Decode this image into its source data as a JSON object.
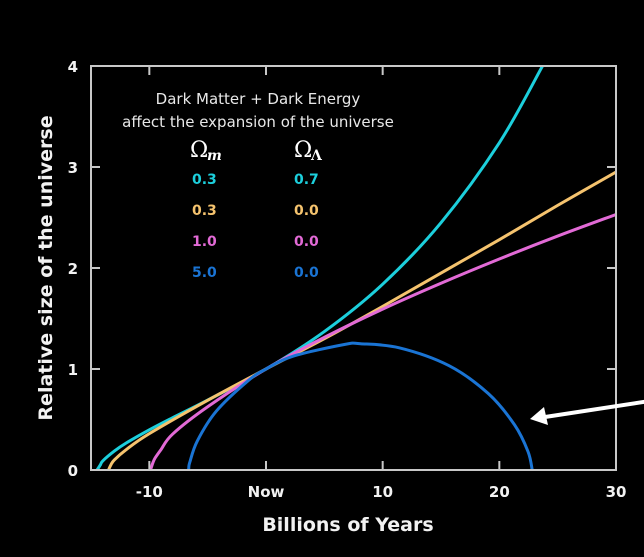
{
  "chart_data": {
    "type": "line",
    "xlabel": "Billions of Years",
    "ylabel": "Relative size of the universe",
    "xlim": [
      -15,
      30
    ],
    "ylim": [
      0,
      4
    ],
    "x_ticks": [
      {
        "value": -10,
        "label": "-10"
      },
      {
        "value": 0,
        "label": "Now"
      },
      {
        "value": 10,
        "label": "10"
      },
      {
        "value": 20,
        "label": "20"
      },
      {
        "value": 30,
        "label": "30"
      }
    ],
    "y_ticks": [
      {
        "value": 0,
        "label": "0"
      },
      {
        "value": 1,
        "label": "1"
      },
      {
        "value": 2,
        "label": "2"
      },
      {
        "value": 3,
        "label": "3"
      },
      {
        "value": 4,
        "label": "4"
      }
    ],
    "grid": false,
    "annotation": {
      "line1": "Dark Matter + Dark Energy",
      "line2": "affect the expansion of the universe"
    },
    "legend": {
      "placement": "top-left",
      "col1_symbol": "Ω",
      "col1_sub": "m",
      "col2_symbol": "Ω",
      "col2_sub": "Λ"
    },
    "series": [
      {
        "omega_m": "0.3",
        "omega_lambda": "0.7",
        "color": "#1ccfdc",
        "points": [
          [
            -14.48,
            0
          ],
          [
            -14.2,
            0.05
          ],
          [
            -14,
            0.089
          ],
          [
            -13,
            0.187
          ],
          [
            -12,
            0.266
          ],
          [
            -10,
            0.398
          ],
          [
            -8,
            0.518
          ],
          [
            -5,
            0.692
          ],
          [
            0,
            1
          ],
          [
            5,
            1.371
          ],
          [
            10,
            1.84
          ],
          [
            15,
            2.449
          ],
          [
            20,
            3.24
          ],
          [
            23.7,
            4.0
          ]
        ]
      },
      {
        "omega_m": "0.3",
        "omega_lambda": "0.0",
        "color": "#f5c36e",
        "points": [
          [
            -13.5,
            0
          ],
          [
            -13.3,
            0.05
          ],
          [
            -13,
            0.1
          ],
          [
            -12,
            0.2
          ],
          [
            -10,
            0.36
          ],
          [
            -5,
            0.69
          ],
          [
            0,
            1
          ],
          [
            5,
            1.3
          ],
          [
            10,
            1.62
          ],
          [
            15,
            1.95
          ],
          [
            20,
            2.28
          ],
          [
            25,
            2.62
          ],
          [
            30,
            2.95
          ]
        ]
      },
      {
        "omega_m": "1.0",
        "omega_lambda": "0.0",
        "color": "#e26ad6",
        "points": [
          [
            -9.9,
            0
          ],
          [
            -9.7,
            0.07
          ],
          [
            -9.5,
            0.12
          ],
          [
            -9,
            0.202
          ],
          [
            -8,
            0.356
          ],
          [
            -5,
            0.626
          ],
          [
            0,
            1
          ],
          [
            5,
            1.313
          ],
          [
            10,
            1.593
          ],
          [
            15,
            1.849
          ],
          [
            20,
            2.089
          ],
          [
            25,
            2.316
          ],
          [
            30,
            2.53
          ]
        ]
      },
      {
        "omega_m": "5.0",
        "omega_lambda": "0.0",
        "color": "#1a74d4",
        "points": [
          [
            -6.63,
            0
          ],
          [
            -6.62,
            0.019
          ],
          [
            -6.53,
            0.077
          ],
          [
            -5.89,
            0.287
          ],
          [
            -4.27,
            0.581
          ],
          [
            -1.52,
            0.885
          ],
          [
            0,
            1
          ],
          [
            2.29,
            1.126
          ],
          [
            6.77,
            1.244
          ],
          [
            8.1,
            1.25
          ],
          [
            11.42,
            1.21
          ],
          [
            15.67,
            1.034
          ],
          [
            19.05,
            0.757
          ],
          [
            21.3,
            0.448
          ],
          [
            22.46,
            0.182
          ],
          [
            22.82,
            0
          ]
        ]
      }
    ]
  }
}
